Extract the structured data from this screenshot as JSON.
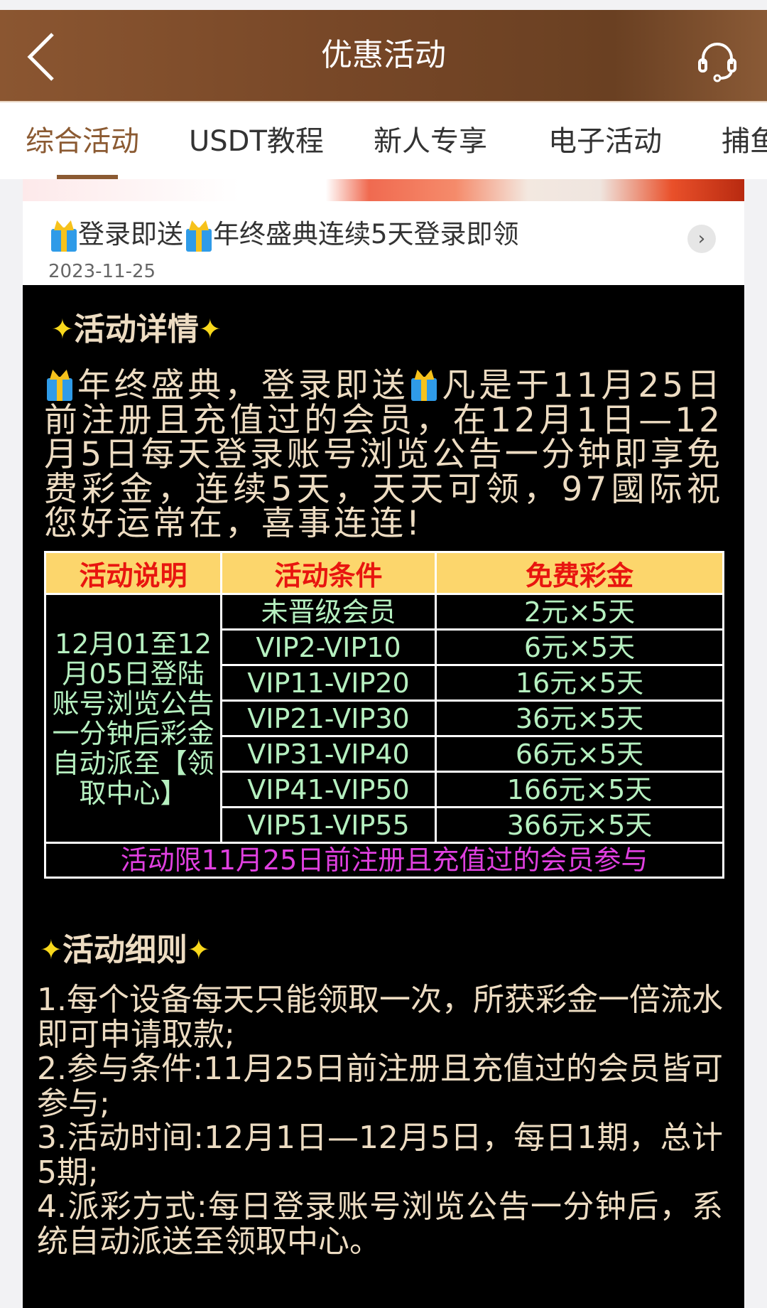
{
  "header": {
    "title": "优惠活动",
    "back_icon": "chevron-left-icon",
    "support_icon": "headset-icon"
  },
  "tabs": [
    {
      "label": "综合活动",
      "active": true
    },
    {
      "label": "USDT教程"
    },
    {
      "label": "新人专享"
    },
    {
      "label": "电子活动"
    },
    {
      "label": "捕鱼"
    }
  ],
  "card": {
    "title_part1": "登录即送",
    "title_part2": "年终盛典连续5天登录即领",
    "date": "2023-11-25"
  },
  "details": {
    "title": "活动详情",
    "intro_part1": "年终盛典，登录即送",
    "intro_part2": "凡是于11月25日前注册且充值过的会员，在12月1日—12月5日每天登录账号浏览公告一分钟即享免费彩金，连续5天，天天可领，97國际祝您好运常在，喜事连连!"
  },
  "table": {
    "headers": [
      "活动说明",
      "活动条件",
      "免费彩金"
    ],
    "description": "12月01至12月05日登陆账号浏览公告一分钟后彩金自动派至【领取中心】",
    "rows": [
      {
        "condition": "未晋级会员",
        "bonus": "2元×5天"
      },
      {
        "condition": "VIP2-VIP10",
        "bonus": "6元×5天"
      },
      {
        "condition": "VIP11-VIP20",
        "bonus": "16元×5天"
      },
      {
        "condition": "VIP21-VIP30",
        "bonus": "36元×5天"
      },
      {
        "condition": "VIP31-VIP40",
        "bonus": "66元×5天"
      },
      {
        "condition": "VIP41-VIP50",
        "bonus": "166元×5天"
      },
      {
        "condition": "VIP51-VIP55",
        "bonus": "366元×5天"
      }
    ],
    "footer": "活动限11月25日前注册且充值过的会员参与"
  },
  "rules": {
    "title": "活动细则",
    "items": [
      "1.每个设备每天只能领取一次，所获彩金一倍流水即可申请取款;",
      "2.参与条件:11月25日前注册且充值过的会员皆可参与;",
      "3.活动时间:12月1日—12月5日，每日1期，总计5期;",
      "4.派彩方式:每日登录账号浏览公告一分钟后，系统自动派送至领取中心。"
    ]
  },
  "colors": {
    "header": "#7a4a29",
    "accent": "#8b5a32",
    "table_header_bg": "#fcd66c",
    "table_header_text": "#e8150f",
    "table_text": "#b6f0c0",
    "footer_text": "#e040e0",
    "body_text": "#eddcc2"
  }
}
